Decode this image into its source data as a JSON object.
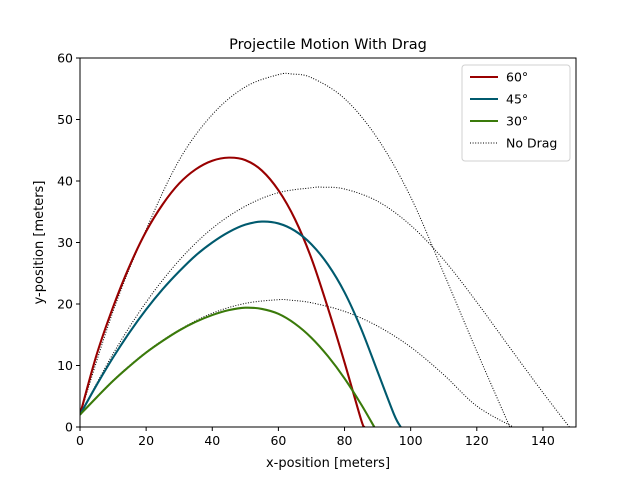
{
  "chart_data": {
    "type": "line",
    "title": "Projectile Motion With Drag",
    "xlabel": "x-position [meters]",
    "ylabel": "y-position [meters]",
    "xlim": [
      0,
      150
    ],
    "ylim": [
      0,
      60
    ],
    "xticks": [
      "0",
      "20",
      "40",
      "60",
      "80",
      "100",
      "120",
      "140"
    ],
    "yticks": [
      "0",
      "10",
      "20",
      "30",
      "40",
      "50",
      "60"
    ],
    "grid": false,
    "legend_position": "top-right",
    "series": [
      {
        "name": "60°",
        "color": "#990000",
        "style": "solid",
        "points": [
          [
            0,
            2
          ],
          [
            5,
            11.7
          ],
          [
            10,
            19.5
          ],
          [
            15,
            26.2
          ],
          [
            20,
            31.8
          ],
          [
            25,
            36.2
          ],
          [
            30,
            39.6
          ],
          [
            35,
            41.9
          ],
          [
            40,
            43.3
          ],
          [
            45,
            43.8
          ],
          [
            50,
            43.4
          ],
          [
            55,
            41.7
          ],
          [
            60,
            38.5
          ],
          [
            65,
            33.8
          ],
          [
            70,
            27.4
          ],
          [
            75,
            19.3
          ],
          [
            80,
            10.5
          ],
          [
            85,
            1.2
          ],
          [
            86,
            0
          ]
        ]
      },
      {
        "name": "45°",
        "color": "#005a6e",
        "style": "solid",
        "points": [
          [
            0,
            2
          ],
          [
            5,
            6.8
          ],
          [
            10,
            11.3
          ],
          [
            15,
            15.4
          ],
          [
            20,
            19.1
          ],
          [
            25,
            22.4
          ],
          [
            30,
            25.3
          ],
          [
            35,
            27.9
          ],
          [
            40,
            30
          ],
          [
            45,
            31.7
          ],
          [
            50,
            32.9
          ],
          [
            55,
            33.4
          ],
          [
            60,
            33.1
          ],
          [
            65,
            31.9
          ],
          [
            70,
            29.7
          ],
          [
            75,
            26.4
          ],
          [
            80,
            21.9
          ],
          [
            85,
            16
          ],
          [
            90,
            9
          ],
          [
            95,
            2
          ],
          [
            97,
            0
          ]
        ]
      },
      {
        "name": "30°",
        "color": "#3a7a0a",
        "style": "solid",
        "points": [
          [
            0,
            2
          ],
          [
            5,
            4.8
          ],
          [
            10,
            7.5
          ],
          [
            15,
            9.9
          ],
          [
            20,
            12.1
          ],
          [
            25,
            14
          ],
          [
            30,
            15.7
          ],
          [
            35,
            17.1
          ],
          [
            40,
            18.2
          ],
          [
            45,
            19
          ],
          [
            50,
            19.4
          ],
          [
            55,
            19.2
          ],
          [
            60,
            18.4
          ],
          [
            65,
            16.8
          ],
          [
            70,
            14.5
          ],
          [
            75,
            11.5
          ],
          [
            80,
            7.9
          ],
          [
            85,
            3.7
          ],
          [
            89,
            0
          ]
        ]
      },
      {
        "name": "No Drag",
        "color": "#000000",
        "style": "dotted",
        "points": [
          [
            0,
            2
          ],
          [
            10,
            18.8
          ],
          [
            20,
            32.1
          ],
          [
            30,
            43.4
          ],
          [
            40,
            50.8
          ],
          [
            50,
            55.3
          ],
          [
            60,
            57.3
          ],
          [
            64,
            57.4
          ],
          [
            70,
            56.8
          ],
          [
            80,
            53.4
          ],
          [
            90,
            46.9
          ],
          [
            100,
            37.4
          ],
          [
            110,
            25
          ],
          [
            120,
            12.3
          ],
          [
            130,
            0
          ]
        ]
      },
      {
        "name": "",
        "color": "#000000",
        "style": "dotted",
        "points": [
          [
            0,
            2
          ],
          [
            10,
            11.9
          ],
          [
            20,
            20.3
          ],
          [
            30,
            27.1
          ],
          [
            40,
            32.3
          ],
          [
            50,
            35.9
          ],
          [
            60,
            38.1
          ],
          [
            70,
            38.9
          ],
          [
            73,
            39
          ],
          [
            80,
            38.7
          ],
          [
            90,
            36.7
          ],
          [
            100,
            32.8
          ],
          [
            110,
            27.2
          ],
          [
            120,
            20.3
          ],
          [
            130,
            12.9
          ],
          [
            140,
            5.6
          ],
          [
            148,
            0
          ]
        ]
      },
      {
        "name": "",
        "color": "#000000",
        "style": "dotted",
        "points": [
          [
            0,
            2
          ],
          [
            10,
            7.6
          ],
          [
            20,
            12.2
          ],
          [
            30,
            15.8
          ],
          [
            40,
            18.5
          ],
          [
            50,
            20.1
          ],
          [
            60,
            20.7
          ],
          [
            64,
            20.6
          ],
          [
            70,
            20.2
          ],
          [
            80,
            18.8
          ],
          [
            90,
            16.4
          ],
          [
            100,
            13
          ],
          [
            110,
            8.5
          ],
          [
            120,
            3.4
          ],
          [
            131,
            0
          ]
        ]
      }
    ]
  }
}
